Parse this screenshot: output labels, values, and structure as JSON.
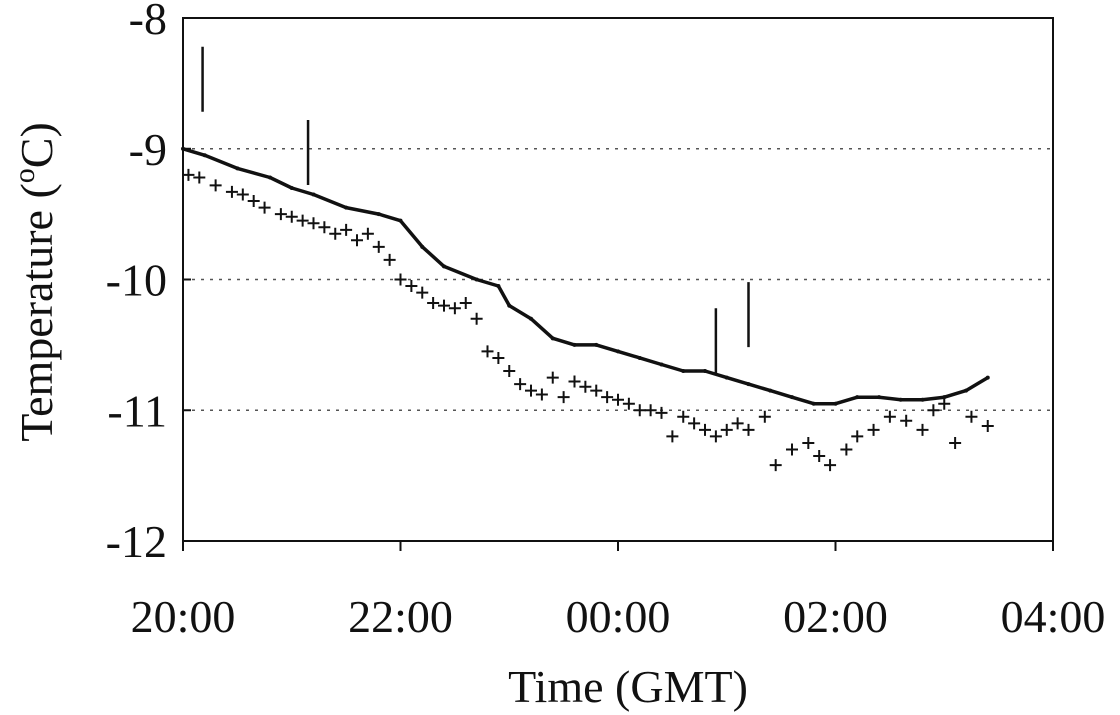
{
  "chart_data": {
    "type": "line",
    "title": "",
    "xlabel": "Time (GMT)",
    "ylabel_parts": [
      "Temperature (",
      "o",
      "C)"
    ],
    "ylim": [
      -12,
      -8
    ],
    "yticks": [
      -12,
      -11,
      -10,
      -9,
      -8
    ],
    "ytick_labels": [
      "-12",
      "-11",
      "-10",
      "-9",
      "-8"
    ],
    "xlim": [
      0,
      8
    ],
    "xticks": [
      0,
      2,
      4,
      6,
      8
    ],
    "xtick_labels": [
      "20:00",
      "22:00",
      "00:00",
      "02:00",
      "04:00"
    ],
    "grid_y_dotted": [
      -11,
      -10,
      -9
    ],
    "series": [
      {
        "style": "line",
        "color": "#111111",
        "x": [
          0.0,
          0.2,
          0.5,
          0.8,
          1.0,
          1.2,
          1.5,
          1.8,
          2.0,
          2.2,
          2.4,
          2.7,
          2.9,
          3.0,
          3.2,
          3.4,
          3.6,
          3.8,
          4.0,
          4.2,
          4.4,
          4.6,
          4.8,
          5.0,
          5.2,
          5.4,
          5.6,
          5.8,
          6.0,
          6.2,
          6.4,
          6.6,
          6.8,
          7.0,
          7.2,
          7.4
        ],
        "y": [
          -9.0,
          -9.05,
          -9.15,
          -9.22,
          -9.3,
          -9.35,
          -9.45,
          -9.5,
          -9.55,
          -9.75,
          -9.9,
          -10.0,
          -10.05,
          -10.2,
          -10.3,
          -10.45,
          -10.5,
          -10.5,
          -10.55,
          -10.6,
          -10.65,
          -10.7,
          -10.7,
          -10.75,
          -10.8,
          -10.85,
          -10.9,
          -10.95,
          -10.95,
          -10.9,
          -10.9,
          -10.92,
          -10.92,
          -10.9,
          -10.85,
          -10.75
        ]
      },
      {
        "style": "line-spike",
        "color": "#111111",
        "x": [
          0.18,
          1.15,
          4.9,
          5.2
        ],
        "y": [
          -8.22,
          -8.78,
          -10.22,
          -10.02
        ]
      },
      {
        "style": "marker-plus",
        "color": "#111111",
        "x": [
          0.05,
          0.15,
          0.3,
          0.45,
          0.55,
          0.65,
          0.75,
          0.9,
          1.0,
          1.1,
          1.2,
          1.3,
          1.4,
          1.5,
          1.6,
          1.7,
          1.8,
          1.9,
          2.0,
          2.1,
          2.2,
          2.3,
          2.4,
          2.5,
          2.6,
          2.7,
          2.8,
          2.9,
          3.0,
          3.1,
          3.2,
          3.3,
          3.4,
          3.5,
          3.6,
          3.7,
          3.8,
          3.9,
          4.0,
          4.1,
          4.2,
          4.3,
          4.4,
          4.5,
          4.6,
          4.7,
          4.8,
          4.9,
          5.0,
          5.1,
          5.2,
          5.35,
          5.45,
          5.6,
          5.75,
          5.85,
          5.95,
          6.1,
          6.2,
          6.35,
          6.5,
          6.65,
          6.8,
          6.9,
          7.0,
          7.1,
          7.25,
          7.4
        ],
        "y": [
          -9.2,
          -9.22,
          -9.28,
          -9.33,
          -9.35,
          -9.4,
          -9.45,
          -9.5,
          -9.52,
          -9.55,
          -9.57,
          -9.6,
          -9.65,
          -9.62,
          -9.7,
          -9.65,
          -9.75,
          -9.85,
          -10.0,
          -10.05,
          -10.1,
          -10.18,
          -10.2,
          -10.22,
          -10.18,
          -10.3,
          -10.55,
          -10.6,
          -10.7,
          -10.8,
          -10.85,
          -10.88,
          -10.75,
          -10.9,
          -10.78,
          -10.82,
          -10.85,
          -10.9,
          -10.92,
          -10.95,
          -11.0,
          -11.0,
          -11.02,
          -11.2,
          -11.05,
          -11.1,
          -11.15,
          -11.2,
          -11.15,
          -11.1,
          -11.15,
          -11.05,
          -11.42,
          -11.3,
          -11.25,
          -11.35,
          -11.42,
          -11.3,
          -11.2,
          -11.15,
          -11.05,
          -11.08,
          -11.15,
          -11.0,
          -10.95,
          -11.25,
          -11.05,
          -11.12
        ]
      }
    ]
  }
}
